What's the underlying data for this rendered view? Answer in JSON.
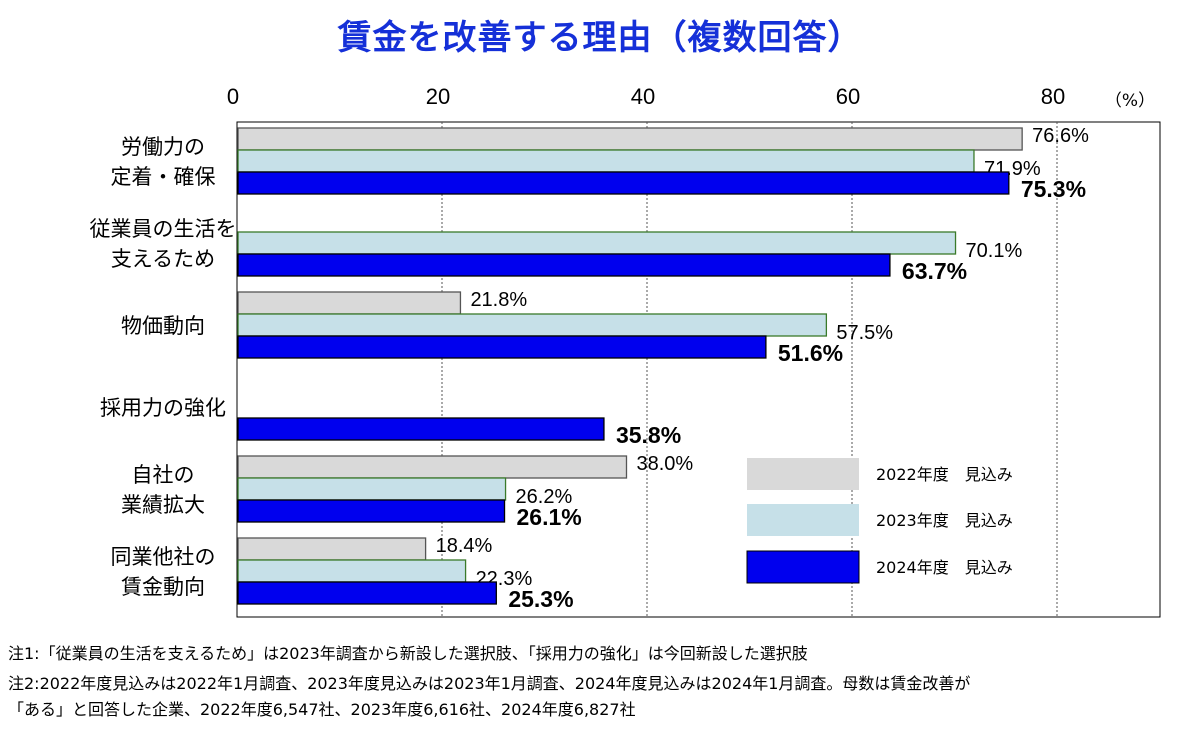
{
  "chart_data": {
    "type": "bar",
    "orientation": "horizontal",
    "title": "賃金を改善する理由（複数回答）",
    "unit_label": "（%）",
    "xlim": [
      0,
      80
    ],
    "xticks": [
      0,
      20,
      40,
      60,
      80
    ],
    "grid": true,
    "legend_position": "bottom-right",
    "categories": [
      [
        "労働力の",
        "定着・確保"
      ],
      [
        "従業員の生活を",
        "支えるため"
      ],
      [
        "物価動向"
      ],
      [
        "採用力の強化"
      ],
      [
        "自社の",
        "業績拡大"
      ],
      [
        "同業他社の",
        "賃金動向"
      ]
    ],
    "series": [
      {
        "name": "2022年度　見込み",
        "color": "#d9d9d9",
        "stroke": "#555555",
        "values": [
          76.6,
          null,
          21.8,
          null,
          38.0,
          18.4
        ],
        "labels": [
          "76.6%",
          null,
          "21.8%",
          null,
          "38.0%",
          "18.4%"
        ]
      },
      {
        "name": "2023年度　見込み",
        "color": "#c6e0e8",
        "stroke": "#3a7a2a",
        "values": [
          71.9,
          70.1,
          57.5,
          null,
          26.2,
          22.3
        ],
        "labels": [
          "71.9%",
          "70.1%",
          "57.5%",
          null,
          "26.2%",
          "22.3%"
        ]
      },
      {
        "name": "2024年度　見込み",
        "color": "#0000ee",
        "stroke": "#000000",
        "values": [
          75.3,
          63.7,
          51.6,
          35.8,
          26.1,
          25.3
        ],
        "labels": [
          "75.3%",
          "63.7%",
          "51.6%",
          "35.8%",
          "26.1%",
          "25.3%"
        ]
      }
    ]
  },
  "notes": [
    "注1:「従業員の生活を支えるため」は2023年調査から新設した選択肢、「採用力の強化」は今回新設した選択肢",
    "注2:2022年度見込みは2022年1月調査、2023年度見込みは2023年1月調査、2024年度見込みは2024年1月調査。母数は賃金改善が",
    "「ある」と回答した企業、2022年度6,547社、2023年度6,616社、2024年度6,827社"
  ]
}
